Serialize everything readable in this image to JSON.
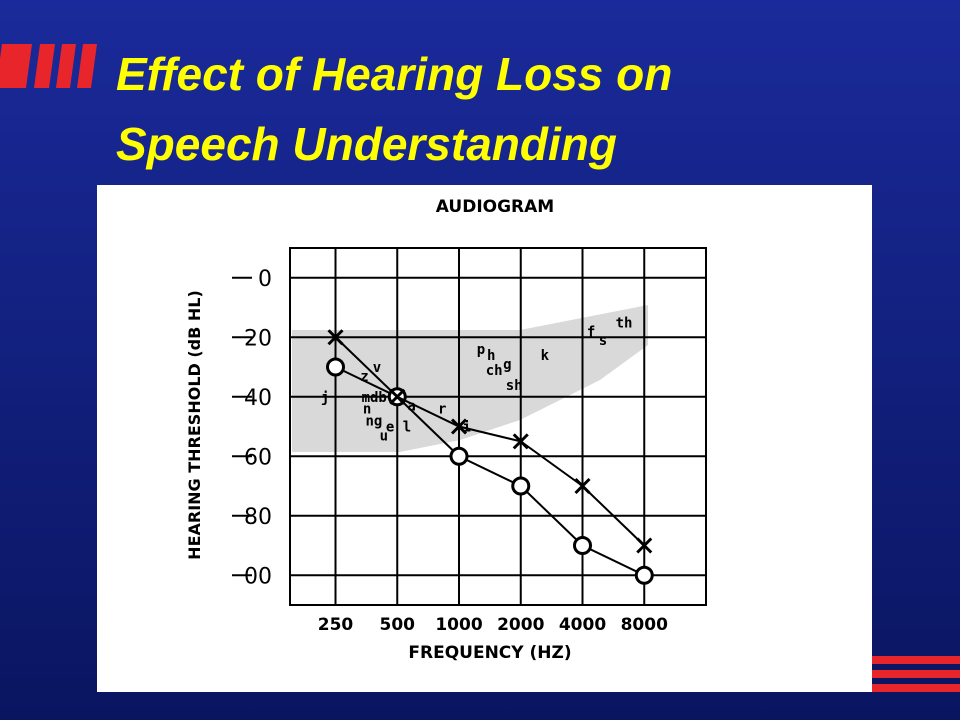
{
  "slide": {
    "title_lines": [
      "Effect of Hearing Loss on",
      "Speech Understanding"
    ]
  },
  "chart_data": {
    "type": "line",
    "title": "AUDIOGRAM",
    "x_label": "FREQUENCY (HZ)",
    "y_label": "HEARING THRESHOLD (dB HL)",
    "x_scale": "log",
    "y_inverted": true,
    "x": [
      250,
      500,
      1000,
      2000,
      4000,
      8000
    ],
    "series": [
      {
        "marker": "circle",
        "color": "#000000",
        "values": [
          30,
          40,
          60,
          70,
          90,
          100
        ]
      },
      {
        "marker": "x",
        "color": "#000000",
        "values": [
          20,
          40,
          50,
          55,
          70,
          90
        ]
      }
    ],
    "xlim": [
      150,
      16000
    ],
    "xticks": [
      250,
      500,
      1000,
      2000,
      4000,
      8000
    ],
    "ylim": [
      -10,
      110
    ],
    "yticks": [
      0,
      20,
      40,
      60,
      80,
      {
        "value": 100,
        "label": "00"
      }
    ],
    "grid": true,
    "phonemes": [
      {
        "text": "j",
        "x": 212,
        "y": 40
      },
      {
        "text": "z",
        "x": 330,
        "y": 33
      },
      {
        "text": "v",
        "x": 380,
        "y": 30
      },
      {
        "text": "mdb",
        "x": 335,
        "y": 40
      },
      {
        "text": "n",
        "x": 340,
        "y": 44
      },
      {
        "text": "ng",
        "x": 350,
        "y": 48
      },
      {
        "text": "e l",
        "x": 440,
        "y": 50
      },
      {
        "text": "u",
        "x": 410,
        "y": 53
      },
      {
        "text": "a",
        "x": 560,
        "y": 43
      },
      {
        "text": "r",
        "x": 790,
        "y": 44
      },
      {
        "text": "i",
        "x": 1040,
        "y": 50
      },
      {
        "text": "p",
        "x": 1220,
        "y": 24
      },
      {
        "text": "h",
        "x": 1370,
        "y": 26
      },
      {
        "text": "g",
        "x": 1640,
        "y": 29
      },
      {
        "text": "ch",
        "x": 1350,
        "y": 31
      },
      {
        "text": "sh",
        "x": 1690,
        "y": 36
      },
      {
        "text": "k",
        "x": 2500,
        "y": 26
      },
      {
        "text": "f",
        "x": 4200,
        "y": 18
      },
      {
        "text": "s",
        "x": 4800,
        "y": 21
      },
      {
        "text": "th",
        "x": 5800,
        "y": 15
      }
    ]
  }
}
